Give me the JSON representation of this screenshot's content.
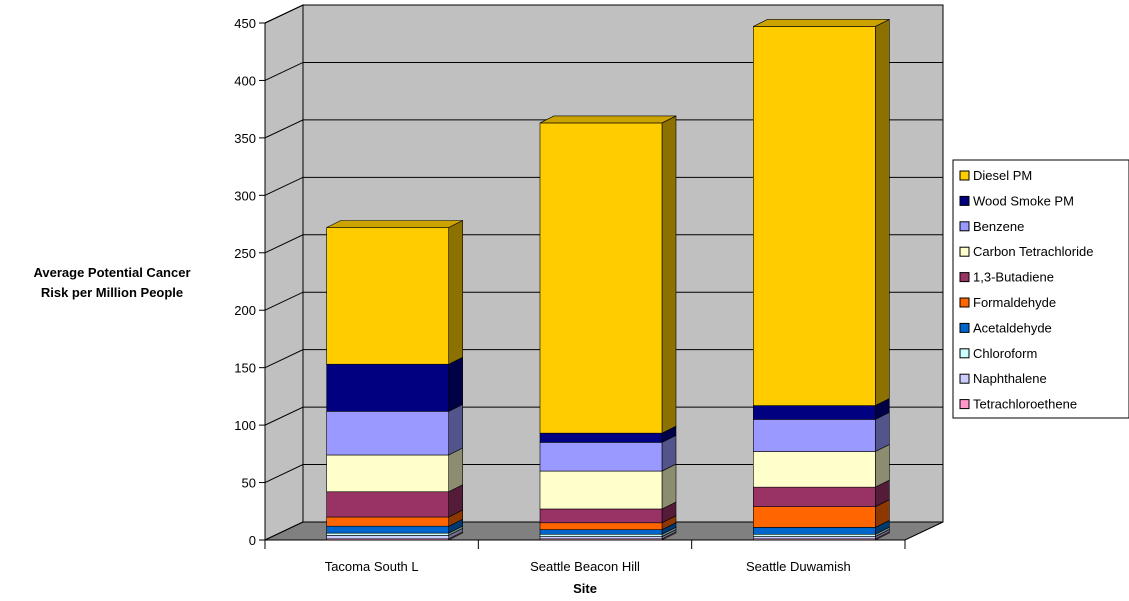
{
  "chart_data": {
    "type": "bar",
    "stacked": true,
    "three_d": true,
    "title": "",
    "xlabel": "Site",
    "ylabel_lines": [
      "Average Potential Cancer",
      "Risk per Million People"
    ],
    "ylim": [
      0,
      450
    ],
    "yticks": [
      0,
      50,
      100,
      150,
      200,
      250,
      300,
      350,
      400,
      450
    ],
    "grid": true,
    "legend_position": "right",
    "categories": [
      "Tacoma South L",
      "Seattle Beacon Hill",
      "Seattle Duwamish"
    ],
    "series": [
      {
        "name": "Tetrachloroethene",
        "color": "#ff99cc",
        "values": [
          1,
          1,
          1
        ]
      },
      {
        "name": "Naphthalene",
        "color": "#ccccff",
        "values": [
          3,
          2,
          2
        ]
      },
      {
        "name": "Chloroform",
        "color": "#ccffff",
        "values": [
          2,
          2,
          2
        ]
      },
      {
        "name": "Acetaldehyde",
        "color": "#0066cc",
        "values": [
          6,
          4,
          6
        ]
      },
      {
        "name": "Formaldehyde",
        "color": "#ff6600",
        "values": [
          8,
          6,
          18
        ]
      },
      {
        "name": "1,3-Butadiene",
        "color": "#993366",
        "values": [
          22,
          12,
          17
        ]
      },
      {
        "name": "Carbon Tetrachloride",
        "color": "#ffffcc",
        "values": [
          32,
          33,
          31
        ]
      },
      {
        "name": "Benzene",
        "color": "#9999ff",
        "values": [
          38,
          25,
          28
        ]
      },
      {
        "name": "Wood Smoke PM",
        "color": "#000080",
        "values": [
          41,
          8,
          12
        ]
      },
      {
        "name": "Diesel PM",
        "color": "#ffcc00",
        "values": [
          119,
          270,
          330
        ]
      }
    ],
    "legend_order": [
      "Diesel PM",
      "Wood Smoke PM",
      "Benzene",
      "Carbon Tetrachloride",
      "1,3-Butadiene",
      "Formaldehyde",
      "Acetaldehyde",
      "Chloroform",
      "Naphthalene",
      "Tetrachloroethene"
    ],
    "colors": {
      "wall": "#c0c0c0",
      "floor": "#808080",
      "gridline": "#000000"
    }
  }
}
